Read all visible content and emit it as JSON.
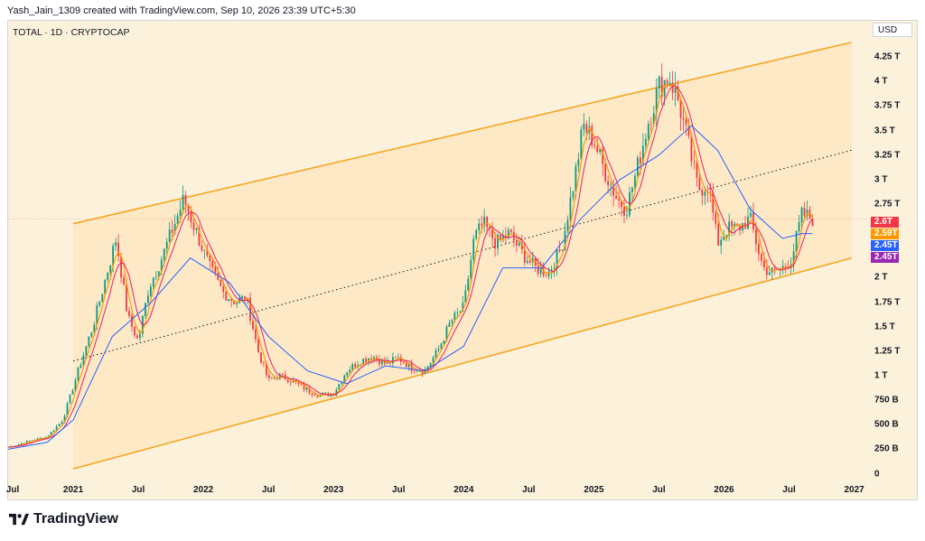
{
  "header": {
    "credit": "Yash_Jain_1309 created with TradingView.com, Sep 10, 2026 23:39 UTC+5:30"
  },
  "chart": {
    "symbol": "TOTAL · 1D · CRYPTOCAP",
    "currency": "USD"
  },
  "brand": {
    "name": "TradingView",
    "logo_icon": "tradingview-logo-icon"
  },
  "price_labels": [
    {
      "text": "2.6T",
      "color": "#f23645"
    },
    {
      "text": "2.59T",
      "color": "#ff9800"
    },
    {
      "text": "2.45T",
      "color": "#2962ff"
    },
    {
      "text": "2.45T",
      "color": "#9c27b0"
    }
  ],
  "colors": {
    "background": "#fcf2dc",
    "channel": "#f5a623",
    "channel_fill": "#fde6bf",
    "up_candle": "#089981",
    "down_candle": "#f23645",
    "ma_fast": "#ff9800",
    "ma_mid": "#e91e63",
    "ma_slow": "#2962ff"
  },
  "chart_data": {
    "type": "candlestick",
    "title": "TOTAL · 1D · CRYPTOCAP",
    "ylabel": "",
    "xlabel": "",
    "y_ticks": [
      "4.25 T",
      "4 T",
      "3.75 T",
      "3.5 T",
      "3.25 T",
      "3 T",
      "2.75 T",
      "2 T",
      "1.75 T",
      "1.5 T",
      "1.25 T",
      "1 T",
      "750 B",
      "500 B",
      "250 B",
      "0"
    ],
    "y_tick_values": [
      4.25,
      4.0,
      3.75,
      3.5,
      3.25,
      3.0,
      2.75,
      2.0,
      1.75,
      1.5,
      1.25,
      1.0,
      0.75,
      0.5,
      0.25,
      0
    ],
    "x_ticks": [
      "Jul",
      "2021",
      "Jul",
      "2022",
      "Jul",
      "2023",
      "Jul",
      "2024",
      "Jul",
      "2025",
      "Jul",
      "2026",
      "Jul",
      "2027"
    ],
    "x_tick_values": [
      2020.5,
      2021.0,
      2021.5,
      2022.0,
      2022.5,
      2023.0,
      2023.5,
      2024.0,
      2024.5,
      2025.0,
      2025.5,
      2026.0,
      2026.5,
      2027.0
    ],
    "ylim": [
      -0.05,
      4.5
    ],
    "xlim": [
      2020.5,
      2027.1
    ],
    "series": [
      {
        "name": "close",
        "x": [
          2020.5,
          2020.65,
          2020.8,
          2020.92,
          2021.05,
          2021.15,
          2021.25,
          2021.33,
          2021.42,
          2021.5,
          2021.58,
          2021.68,
          2021.75,
          2021.85,
          2021.95,
          2022.05,
          2022.15,
          2022.25,
          2022.33,
          2022.42,
          2022.5,
          2022.58,
          2022.68,
          2022.8,
          2022.9,
          2023.0,
          2023.1,
          2023.2,
          2023.3,
          2023.4,
          2023.5,
          2023.6,
          2023.7,
          2023.8,
          2023.9,
          2024.0,
          2024.08,
          2024.15,
          2024.25,
          2024.35,
          2024.45,
          2024.55,
          2024.65,
          2024.75,
          2024.85,
          2024.92,
          2025.0,
          2025.08,
          2025.18,
          2025.25,
          2025.33,
          2025.42,
          2025.5,
          2025.58,
          2025.65,
          2025.72,
          2025.8,
          2025.88,
          2025.95,
          2026.02,
          2026.1,
          2026.2,
          2026.3,
          2026.38,
          2026.45,
          2026.52,
          2026.6,
          2026.68
        ],
        "values": [
          0.27,
          0.33,
          0.38,
          0.55,
          1.1,
          1.5,
          2.0,
          2.4,
          1.6,
          1.35,
          1.9,
          2.2,
          2.45,
          2.8,
          2.45,
          2.1,
          1.85,
          1.75,
          1.8,
          1.25,
          0.95,
          1.0,
          0.95,
          0.85,
          0.8,
          0.82,
          1.05,
          1.15,
          1.2,
          1.12,
          1.18,
          1.08,
          1.05,
          1.25,
          1.55,
          1.7,
          2.4,
          2.55,
          2.35,
          2.45,
          2.25,
          2.1,
          2.05,
          2.3,
          3.0,
          3.55,
          3.4,
          3.1,
          2.8,
          2.7,
          3.1,
          3.6,
          3.95,
          4.05,
          3.8,
          3.4,
          2.9,
          2.95,
          2.35,
          2.5,
          2.5,
          2.6,
          2.1,
          2.05,
          2.1,
          2.2,
          2.65,
          2.6
        ]
      },
      {
        "name": "ma_slow",
        "x": [
          2020.5,
          2020.8,
          2021.0,
          2021.3,
          2021.6,
          2021.9,
          2022.2,
          2022.5,
          2022.8,
          2023.1,
          2023.4,
          2023.7,
          2024.0,
          2024.3,
          2024.6,
          2024.9,
          2025.2,
          2025.5,
          2025.75,
          2025.95,
          2026.2,
          2026.45,
          2026.6,
          2026.68
        ],
        "values": [
          0.25,
          0.32,
          0.55,
          1.4,
          1.75,
          2.2,
          1.95,
          1.4,
          1.05,
          0.92,
          1.1,
          1.05,
          1.3,
          2.1,
          2.1,
          2.6,
          3.0,
          3.25,
          3.55,
          3.3,
          2.7,
          2.4,
          2.45,
          2.45
        ]
      }
    ],
    "channel": {
      "upper": {
        "x": [
          2021.0,
          2026.98
        ],
        "y": [
          2.55,
          4.4
        ]
      },
      "lower": {
        "x": [
          2021.0,
          2026.98
        ],
        "y": [
          0.05,
          2.2
        ]
      },
      "mid": {
        "x": [
          2021.0,
          2026.98
        ],
        "y": [
          1.15,
          3.3
        ]
      }
    },
    "last_values": [
      2.6,
      2.59,
      2.45,
      2.45
    ]
  }
}
